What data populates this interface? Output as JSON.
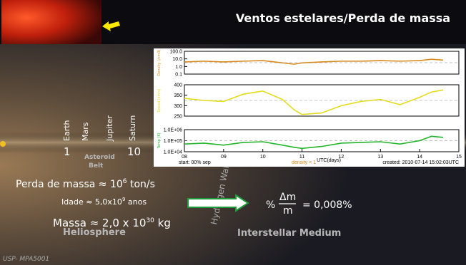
{
  "header": {
    "title": "Ventos estelares/Perda de massa"
  },
  "solar_system": {
    "planets": [
      "Earth",
      "Mars",
      "Jupiter",
      "Saturn"
    ],
    "distance_labels": [
      "1",
      "10"
    ],
    "asteroid_belt": [
      "Asteroid",
      "Belt"
    ]
  },
  "regions": {
    "heliosphere": "Heliosphere",
    "hydrogen_wall": "Hydrogen Wall",
    "interstellar_medium": "Interstellar Medium"
  },
  "facts": {
    "mass_loss": {
      "text": "Perda de massa ≈ 10",
      "exponent": "6",
      "unit": " ton/s"
    },
    "age": {
      "text": "Idade ≈ 5,0x10",
      "exponent": "9",
      "unit": " anos"
    },
    "mass": {
      "text": "Massa ≈ 2,0 x 10",
      "exponent": "30",
      "unit": " kg"
    }
  },
  "formula": {
    "percent": "%",
    "numerator": "Δm",
    "denominator": "m",
    "result": "= 0,008%"
  },
  "footer": "USP- MPA5001",
  "chart_data": [
    {
      "type": "line",
      "y_label": "Density (/cm3)",
      "log_scale": true,
      "ylim": [
        0.1,
        100
      ],
      "yticks": [
        {
          "value": 100,
          "label": "100.0"
        },
        {
          "value": 10,
          "label": "10.0"
        },
        {
          "value": 1,
          "label": "1.0"
        },
        0.1
      ],
      "xlim": [
        8,
        15
      ],
      "x": [
        8,
        8.5,
        9,
        9.5,
        10,
        10.5,
        10.8,
        11,
        11.5,
        12,
        12.5,
        13,
        13.5,
        14,
        14.3,
        14.6
      ],
      "series": [
        {
          "color": "#d9891c",
          "values": [
            4,
            5,
            4,
            5,
            6,
            3,
            2,
            3,
            4,
            5,
            5,
            6,
            5,
            6,
            9,
            7
          ]
        }
      ]
    },
    {
      "type": "line",
      "y_label": "Speed (km/s)",
      "log_scale": false,
      "ylim": [
        250,
        400
      ],
      "yticks": [
        400,
        350,
        300,
        250
      ],
      "xlim": [
        8,
        15
      ],
      "x": [
        8,
        8.5,
        9,
        9.5,
        10,
        10.5,
        10.8,
        11,
        11.5,
        12,
        12.5,
        13,
        13.5,
        14,
        14.3,
        14.6
      ],
      "series": [
        {
          "color": "#e3dc1e",
          "values": [
            335,
            325,
            320,
            355,
            370,
            330,
            280,
            258,
            265,
            300,
            320,
            330,
            305,
            340,
            365,
            375
          ]
        }
      ]
    },
    {
      "type": "line",
      "y_label": "Temp (K)",
      "log_scale": true,
      "ylim": [
        10000,
        1000000
      ],
      "yticks": [
        {
          "value": 1000000,
          "label": "1.0E+06"
        },
        {
          "value": 100000,
          "label": "1.0E+05"
        },
        {
          "value": 10000,
          "label": "1.0E+04"
        }
      ],
      "xlim": [
        8,
        15
      ],
      "x": [
        8,
        8.5,
        9,
        9.5,
        10,
        10.5,
        10.8,
        11,
        11.5,
        12,
        12.5,
        13,
        13.5,
        14,
        14.3,
        14.6
      ],
      "xticks": [
        {
          "value": 8,
          "label": "08"
        },
        {
          "value": 9,
          "label": "09"
        },
        10,
        11,
        12,
        13,
        14,
        15
      ],
      "x_label": "UTC(days)",
      "annotations": [
        "start: 00% sep",
        "density < 1",
        "created: 2010-07-14 15:02:03UTC"
      ],
      "series": [
        {
          "color": "#22b52a",
          "values": [
            50000,
            60000,
            40000,
            70000,
            80000,
            40000,
            25000,
            20000,
            30000,
            60000,
            70000,
            80000,
            50000,
            100000,
            250000,
            200000
          ]
        }
      ]
    }
  ]
}
